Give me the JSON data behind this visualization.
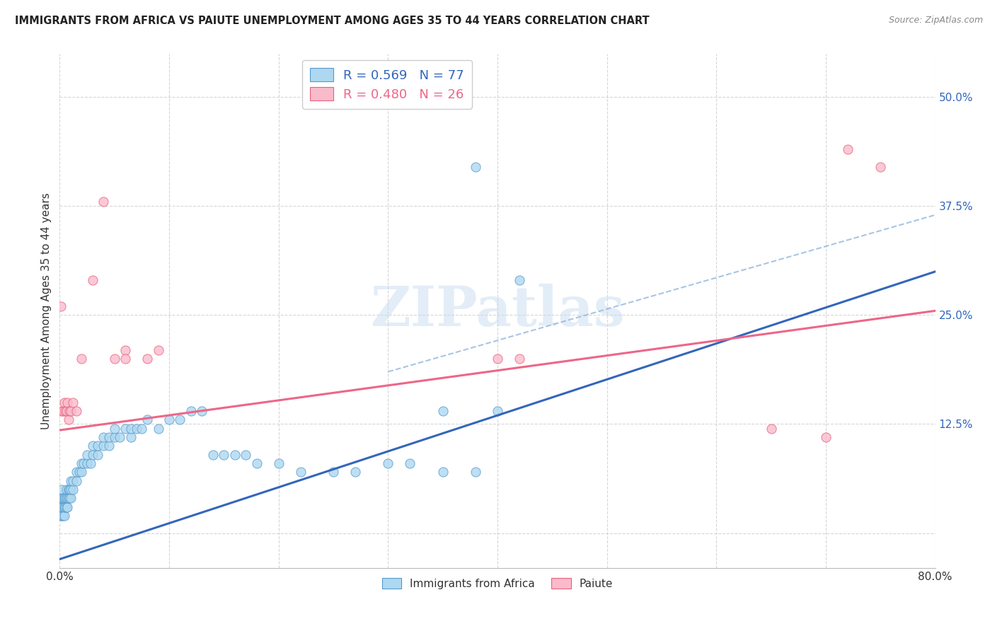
{
  "title": "IMMIGRANTS FROM AFRICA VS PAIUTE UNEMPLOYMENT AMONG AGES 35 TO 44 YEARS CORRELATION CHART",
  "source": "Source: ZipAtlas.com",
  "ylabel": "Unemployment Among Ages 35 to 44 years",
  "x_min": 0.0,
  "x_max": 0.8,
  "y_min": -0.04,
  "y_max": 0.55,
  "x_ticks": [
    0.0,
    0.1,
    0.2,
    0.3,
    0.4,
    0.5,
    0.6,
    0.7,
    0.8
  ],
  "y_ticks": [
    0.0,
    0.125,
    0.25,
    0.375,
    0.5
  ],
  "y_tick_labels": [
    "",
    "12.5%",
    "25.0%",
    "37.5%",
    "50.0%"
  ],
  "legend_R_blue": "R = 0.569",
  "legend_N_blue": "N = 77",
  "legend_R_pink": "R = 0.480",
  "legend_N_pink": "N = 26",
  "legend_label_blue": "Immigrants from Africa",
  "legend_label_pink": "Paiute",
  "blue_color": "#ADD8F0",
  "pink_color": "#F9BBCC",
  "blue_edge_color": "#5599CC",
  "pink_edge_color": "#E8607A",
  "blue_line_color": "#3366BB",
  "pink_line_color": "#EE6688",
  "dashed_line_color": "#99BBDD",
  "blue_scatter": [
    [
      0.001,
      0.02
    ],
    [
      0.001,
      0.03
    ],
    [
      0.001,
      0.04
    ],
    [
      0.002,
      0.02
    ],
    [
      0.002,
      0.03
    ],
    [
      0.002,
      0.04
    ],
    [
      0.002,
      0.05
    ],
    [
      0.003,
      0.02
    ],
    [
      0.003,
      0.03
    ],
    [
      0.003,
      0.04
    ],
    [
      0.004,
      0.02
    ],
    [
      0.004,
      0.03
    ],
    [
      0.004,
      0.04
    ],
    [
      0.005,
      0.03
    ],
    [
      0.005,
      0.04
    ],
    [
      0.006,
      0.03
    ],
    [
      0.006,
      0.04
    ],
    [
      0.006,
      0.05
    ],
    [
      0.007,
      0.03
    ],
    [
      0.007,
      0.04
    ],
    [
      0.008,
      0.04
    ],
    [
      0.008,
      0.05
    ],
    [
      0.009,
      0.04
    ],
    [
      0.009,
      0.05
    ],
    [
      0.01,
      0.04
    ],
    [
      0.01,
      0.05
    ],
    [
      0.01,
      0.06
    ],
    [
      0.012,
      0.05
    ],
    [
      0.012,
      0.06
    ],
    [
      0.015,
      0.06
    ],
    [
      0.015,
      0.07
    ],
    [
      0.018,
      0.07
    ],
    [
      0.02,
      0.07
    ],
    [
      0.02,
      0.08
    ],
    [
      0.022,
      0.08
    ],
    [
      0.025,
      0.08
    ],
    [
      0.025,
      0.09
    ],
    [
      0.028,
      0.08
    ],
    [
      0.03,
      0.09
    ],
    [
      0.03,
      0.1
    ],
    [
      0.035,
      0.09
    ],
    [
      0.035,
      0.1
    ],
    [
      0.04,
      0.1
    ],
    [
      0.04,
      0.11
    ],
    [
      0.045,
      0.1
    ],
    [
      0.045,
      0.11
    ],
    [
      0.05,
      0.11
    ],
    [
      0.05,
      0.12
    ],
    [
      0.055,
      0.11
    ],
    [
      0.06,
      0.12
    ],
    [
      0.065,
      0.11
    ],
    [
      0.065,
      0.12
    ],
    [
      0.07,
      0.12
    ],
    [
      0.075,
      0.12
    ],
    [
      0.08,
      0.13
    ],
    [
      0.09,
      0.12
    ],
    [
      0.1,
      0.13
    ],
    [
      0.11,
      0.13
    ],
    [
      0.12,
      0.14
    ],
    [
      0.13,
      0.14
    ],
    [
      0.14,
      0.09
    ],
    [
      0.15,
      0.09
    ],
    [
      0.16,
      0.09
    ],
    [
      0.17,
      0.09
    ],
    [
      0.18,
      0.08
    ],
    [
      0.2,
      0.08
    ],
    [
      0.22,
      0.07
    ],
    [
      0.25,
      0.07
    ],
    [
      0.27,
      0.07
    ],
    [
      0.3,
      0.08
    ],
    [
      0.32,
      0.08
    ],
    [
      0.35,
      0.07
    ],
    [
      0.38,
      0.07
    ],
    [
      0.35,
      0.14
    ],
    [
      0.4,
      0.14
    ],
    [
      0.38,
      0.42
    ],
    [
      0.42,
      0.29
    ]
  ],
  "pink_scatter": [
    [
      0.001,
      0.26
    ],
    [
      0.002,
      0.14
    ],
    [
      0.003,
      0.14
    ],
    [
      0.004,
      0.15
    ],
    [
      0.005,
      0.14
    ],
    [
      0.006,
      0.14
    ],
    [
      0.007,
      0.15
    ],
    [
      0.008,
      0.13
    ],
    [
      0.009,
      0.14
    ],
    [
      0.01,
      0.14
    ],
    [
      0.012,
      0.15
    ],
    [
      0.015,
      0.14
    ],
    [
      0.02,
      0.2
    ],
    [
      0.03,
      0.29
    ],
    [
      0.04,
      0.38
    ],
    [
      0.05,
      0.2
    ],
    [
      0.06,
      0.21
    ],
    [
      0.06,
      0.2
    ],
    [
      0.08,
      0.2
    ],
    [
      0.09,
      0.21
    ],
    [
      0.4,
      0.2
    ],
    [
      0.42,
      0.2
    ],
    [
      0.65,
      0.12
    ],
    [
      0.7,
      0.11
    ],
    [
      0.72,
      0.44
    ],
    [
      0.75,
      0.42
    ]
  ],
  "blue_line_x": [
    0.0,
    0.8
  ],
  "blue_line_y": [
    -0.03,
    0.3
  ],
  "pink_line_x": [
    0.0,
    0.8
  ],
  "pink_line_y": [
    0.118,
    0.255
  ],
  "dashed_line_x": [
    0.3,
    0.8
  ],
  "dashed_line_y": [
    0.185,
    0.365
  ],
  "background_color": "#FFFFFF",
  "watermark_text": "ZIPatlas",
  "watermark_color": "#C8DCF0"
}
